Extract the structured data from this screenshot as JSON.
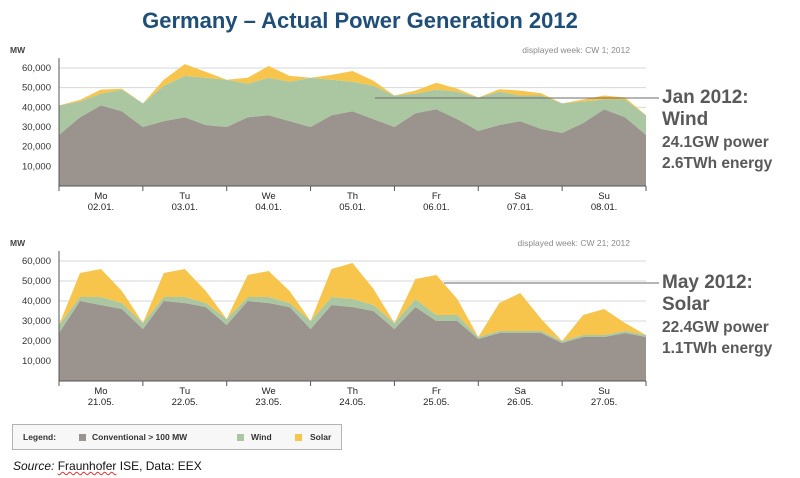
{
  "title": "Germany – Actual Power Generation 2012",
  "colors": {
    "conventional": "#9b948e",
    "wind": "#abc7a1",
    "solar": "#f8c54c",
    "axis": "#555555"
  },
  "annotations": [
    {
      "title": "Jan 2012: Wind",
      "power": "24.1GW power",
      "energy": "2.6TWh energy"
    },
    {
      "title": "May 2012: Solar",
      "power": "22.4GW power",
      "energy": "1.1TWh energy"
    }
  ],
  "legend": {
    "label": "Legend:",
    "items": [
      {
        "name": "Conventional > 100 MW",
        "color": "#9b948e"
      },
      {
        "name": "Wind",
        "color": "#abc7a1"
      },
      {
        "name": "Solar",
        "color": "#f8c54c"
      }
    ]
  },
  "source": {
    "label": "Source:",
    "org": "Fraunhofer",
    "rest": " ISE, Data: EEX"
  },
  "chart_data": [
    {
      "type": "area",
      "subtitle": "displayed week: CW 1; 2012",
      "ylabel": "MW",
      "ylim": [
        0,
        65000
      ],
      "yticks": [
        10000,
        20000,
        30000,
        40000,
        50000,
        60000
      ],
      "ytick_labels": [
        "10,000",
        "20,000",
        "30,000",
        "40,000",
        "50,000",
        "60,000"
      ],
      "categories": [
        "Mo 02.01.",
        "Tu 03.01.",
        "We 04.01.",
        "Th 05.01.",
        "Fr 06.01.",
        "Sa 07.01.",
        "Su 08.01."
      ],
      "day_labels": [
        [
          "Mo",
          "02.01."
        ],
        [
          "Tu",
          "03.01."
        ],
        [
          "We",
          "04.01."
        ],
        [
          "Th",
          "05.01."
        ],
        [
          "Fr",
          "06.01."
        ],
        [
          "Sa",
          "07.01."
        ],
        [
          "Su",
          "08.01."
        ]
      ],
      "x": [
        0,
        0.25,
        0.5,
        0.75,
        1,
        1.25,
        1.5,
        1.75,
        2,
        2.25,
        2.5,
        2.75,
        3,
        3.25,
        3.5,
        3.75,
        4,
        4.25,
        4.5,
        4.75,
        5,
        5.25,
        5.5,
        5.75,
        6,
        6.25,
        6.5,
        6.75,
        7
      ],
      "series": [
        {
          "name": "Conventional > 100 MW",
          "values": [
            26000,
            35000,
            41000,
            38000,
            30000,
            33000,
            35000,
            31000,
            30000,
            35000,
            36000,
            33000,
            30000,
            36000,
            38000,
            34000,
            30000,
            37000,
            39000,
            34000,
            28000,
            31000,
            33000,
            29000,
            27000,
            32000,
            39000,
            35000,
            26000
          ]
        },
        {
          "name": "Wind",
          "values": [
            15000,
            8000,
            6000,
            11000,
            12000,
            18000,
            21000,
            24000,
            24000,
            17000,
            19000,
            20000,
            25000,
            18000,
            15000,
            17000,
            16000,
            10000,
            10000,
            14000,
            17000,
            17000,
            13000,
            17000,
            15000,
            11000,
            5000,
            9000,
            10000
          ]
        },
        {
          "name": "Solar",
          "values": [
            0,
            800,
            2000,
            500,
            0,
            3000,
            6000,
            3000,
            0,
            3000,
            6000,
            3000,
            0,
            2500,
            5500,
            2500,
            0,
            1500,
            3500,
            1500,
            0,
            1200,
            2500,
            1200,
            0,
            1000,
            2000,
            1000,
            0
          ]
        }
      ]
    },
    {
      "type": "area",
      "subtitle": "displayed week: CW 21; 2012",
      "ylabel": "MW",
      "ylim": [
        0,
        65000
      ],
      "yticks": [
        10000,
        20000,
        30000,
        40000,
        50000,
        60000
      ],
      "ytick_labels": [
        "10,000",
        "20,000",
        "30,000",
        "40,000",
        "50,000",
        "60,000"
      ],
      "categories": [
        "Mo 21.05.",
        "Tu 22.05.",
        "We 23.05.",
        "Th 24.05.",
        "Fr 25.05.",
        "Sa 26.05.",
        "Su 27.05."
      ],
      "day_labels": [
        [
          "Mo",
          "21.05."
        ],
        [
          "Tu",
          "22.05."
        ],
        [
          "We",
          "23.05."
        ],
        [
          "Th",
          "24.05."
        ],
        [
          "Fr",
          "25.05."
        ],
        [
          "Sa",
          "26.05."
        ],
        [
          "Su",
          "27.05."
        ]
      ],
      "x": [
        0,
        0.25,
        0.5,
        0.75,
        1,
        1.25,
        1.5,
        1.75,
        2,
        2.25,
        2.5,
        2.75,
        3,
        3.25,
        3.5,
        3.75,
        4,
        4.25,
        4.5,
        4.75,
        5,
        5.25,
        5.5,
        5.75,
        6,
        6.25,
        6.5,
        6.75,
        7
      ],
      "series": [
        {
          "name": "Conventional > 100 MW",
          "values": [
            24000,
            40000,
            38000,
            36000,
            26000,
            40000,
            39000,
            37000,
            28000,
            40000,
            39000,
            37000,
            26000,
            38000,
            37000,
            35000,
            26000,
            37000,
            30000,
            30000,
            21000,
            24000,
            24000,
            24000,
            19000,
            22000,
            22000,
            24000,
            22000
          ]
        },
        {
          "name": "Wind",
          "values": [
            4000,
            2000,
            4000,
            3000,
            3000,
            2000,
            3000,
            2000,
            3000,
            2000,
            3000,
            2000,
            4000,
            4000,
            4000,
            3000,
            3000,
            4000,
            3000,
            3000,
            1000,
            1000,
            1000,
            1000,
            1000,
            1000,
            1000,
            1000,
            1000
          ]
        },
        {
          "name": "Solar",
          "values": [
            0,
            12000,
            14000,
            6000,
            0,
            12000,
            14000,
            6000,
            0,
            11000,
            13000,
            6000,
            0,
            14000,
            18000,
            8000,
            0,
            10000,
            20000,
            8000,
            0,
            14000,
            19000,
            6000,
            0,
            10000,
            13000,
            4000,
            0
          ]
        }
      ]
    }
  ]
}
